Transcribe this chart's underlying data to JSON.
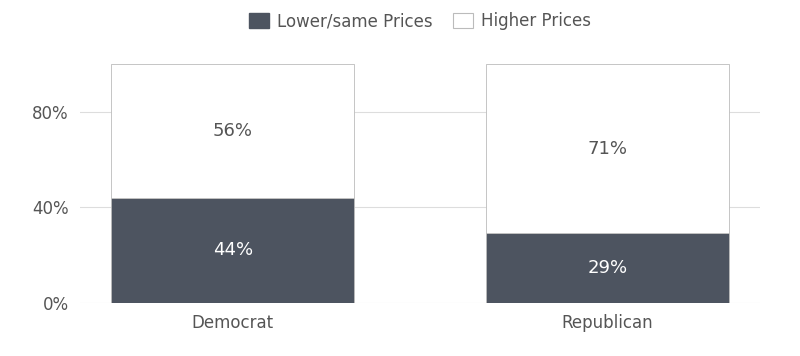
{
  "categories": [
    "Democrat",
    "Republican"
  ],
  "lower_same": [
    44,
    29
  ],
  "higher": [
    56,
    71
  ],
  "lower_same_color": "#4d5460",
  "higher_color": "#ffffff",
  "bar_edge_color": "#bbbbbb",
  "lower_same_label": "Lower/same Prices",
  "higher_label": "Higher Prices",
  "text_color_dark": "#ffffff",
  "text_color_light": "#555555",
  "yticks": [
    0,
    40,
    80
  ],
  "ytick_labels": [
    "0%",
    "40%",
    "80%"
  ],
  "ylim": [
    0,
    100
  ],
  "bar_width": 0.65,
  "background_color": "#ffffff",
  "grid_color": "#dddddd",
  "label_fontsize": 12,
  "tick_fontsize": 12,
  "legend_fontsize": 12,
  "annotation_fontsize": 13
}
